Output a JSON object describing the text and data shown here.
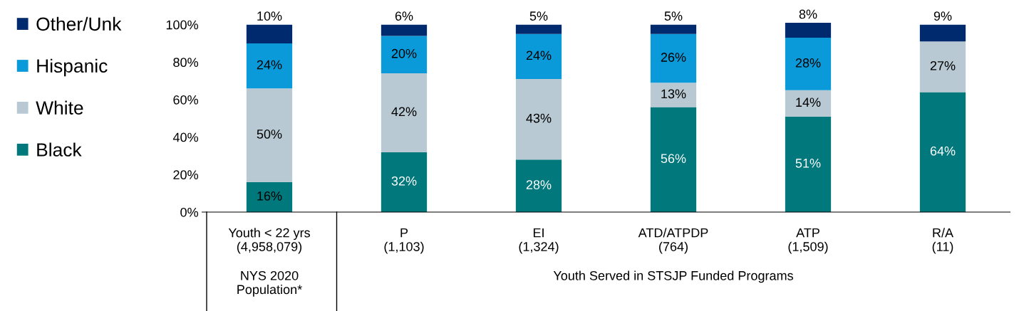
{
  "chart_data": {
    "type": "bar",
    "stacked": true,
    "categories": [
      "Youth < 22 yrs\n(4,958,079)",
      "P\n(1,103)",
      "EI\n(1,324)",
      "ATD/ATPDP\n(764)",
      "ATP\n(1,509)",
      "R/A\n(11)"
    ],
    "series": [
      {
        "name": "Black",
        "color": "#00787c",
        "values": [
          16,
          32,
          28,
          56,
          51,
          64
        ],
        "value_labels": [
          "16%",
          "32%",
          "28%",
          "56%",
          "51%",
          "64%"
        ]
      },
      {
        "name": "White",
        "color": "#b8c9d3",
        "values": [
          50,
          42,
          43,
          13,
          14,
          27
        ],
        "value_labels": [
          "50%",
          "42%",
          "43%",
          "13%",
          "14%",
          "27%"
        ]
      },
      {
        "name": "Hispanic",
        "color": "#0b9ad9",
        "values": [
          24,
          20,
          24,
          26,
          28,
          0
        ],
        "value_labels": [
          "24%",
          "20%",
          "24%",
          "26%",
          "28%",
          null
        ]
      },
      {
        "name": "Other/Unk",
        "color": "#002a6e",
        "values": [
          10,
          6,
          5,
          5,
          8,
          9
        ],
        "value_labels": [
          "10%",
          "6%",
          "5%",
          "5%",
          "8%",
          "9%"
        ]
      }
    ],
    "ylim": [
      0,
      101
    ],
    "yticks": [
      {
        "value": 0,
        "label": "0%"
      },
      {
        "value": 20,
        "label": "20%"
      },
      {
        "value": 40,
        "label": "40%"
      },
      {
        "value": 60,
        "label": "60%"
      },
      {
        "value": 80,
        "label": "80%"
      },
      {
        "value": 100,
        "label": "100%"
      }
    ],
    "legend": "left",
    "grid": false,
    "annotations": [
      "NYS 2020\nPopulation*",
      "Youth Served in STSJP Funded Programs"
    ]
  }
}
